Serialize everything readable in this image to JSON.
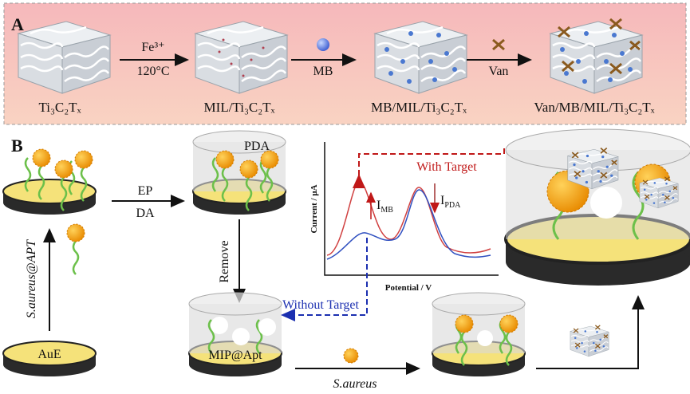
{
  "panel_a": {
    "label": "A",
    "steps": [
      {
        "reagent": "Fe³⁺",
        "condition": "120°C"
      },
      {
        "reagent": "MB"
      },
      {
        "reagent": "Van"
      }
    ],
    "materials": [
      "Ti₃C₂Tₓ",
      "MIL/Ti₃C₂Tₓ",
      "MB/MIL/Ti₃C₂Tₓ",
      "Van/MB/MIL/Ti₃C₂Tₓ"
    ]
  },
  "panel_b": {
    "label": "B",
    "step_ep": "EP",
    "step_da": "DA",
    "pda_label": "PDA",
    "remove": "Remove",
    "incubation": "S.aureus@APT",
    "electrode": "AuE",
    "mip": "MIP@Apt",
    "target": "S.aureus",
    "without_target": "Without Target",
    "with_target": "With Target",
    "plot": {
      "y_label": "Current / μA",
      "x_label": "Potential / V",
      "peak_mb": {
        "symbol": "I",
        "subscript": "MB"
      },
      "peak_pda": {
        "symbol": "I",
        "subscript": "PDA"
      }
    }
  }
}
